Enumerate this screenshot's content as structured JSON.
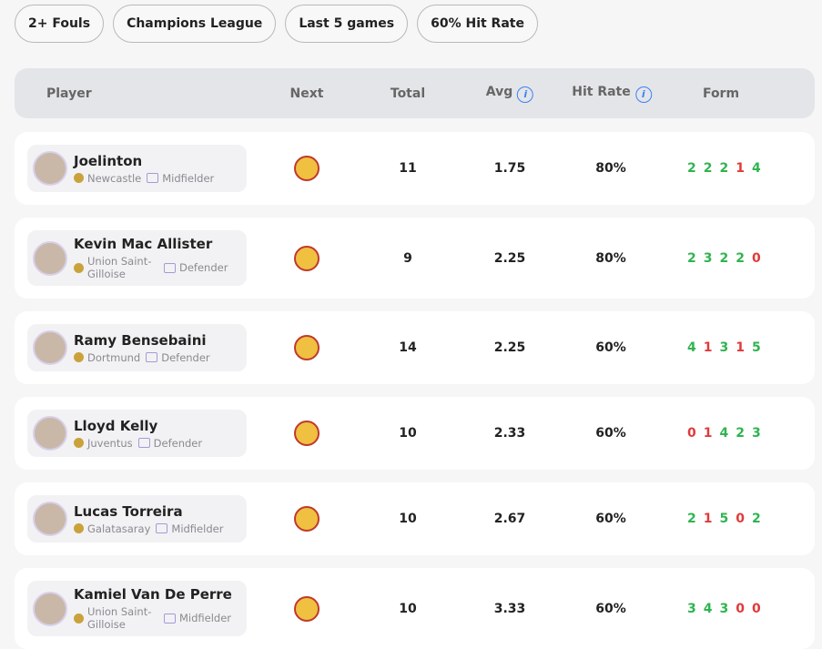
{
  "filters": [
    "2+ Fouls",
    "Champions League",
    "Last 5 games",
    "60% Hit Rate"
  ],
  "table": {
    "headers": {
      "player": "Player",
      "next": "Next",
      "total": "Total",
      "avg": "Avg",
      "hit_rate": "Hit Rate",
      "form": "Form"
    },
    "colors": {
      "hit": "#2fb44f",
      "miss": "#e03a3a"
    },
    "rows": [
      {
        "name": "Joelinton",
        "team": "Newcastle",
        "position": "Midfielder",
        "total": 11,
        "avg": 1.75,
        "hit_rate": "80%",
        "form": [
          2,
          2,
          2,
          1,
          4
        ],
        "form_hits": [
          true,
          true,
          true,
          false,
          true
        ]
      },
      {
        "name": "Kevin Mac Allister",
        "team": "Union Saint-Gilloise",
        "position": "Defender",
        "total": 9,
        "avg": 2.25,
        "hit_rate": "80%",
        "form": [
          2,
          3,
          2,
          2,
          0
        ],
        "form_hits": [
          true,
          true,
          true,
          true,
          false
        ]
      },
      {
        "name": "Ramy Bensebaini",
        "team": "Dortmund",
        "position": "Defender",
        "total": 14,
        "avg": 2.25,
        "hit_rate": "60%",
        "form": [
          4,
          1,
          3,
          1,
          5
        ],
        "form_hits": [
          true,
          false,
          true,
          false,
          true
        ]
      },
      {
        "name": "Lloyd Kelly",
        "team": "Juventus",
        "position": "Defender",
        "total": 10,
        "avg": 2.33,
        "hit_rate": "60%",
        "form": [
          0,
          1,
          4,
          2,
          3
        ],
        "form_hits": [
          false,
          false,
          true,
          true,
          true
        ]
      },
      {
        "name": "Lucas Torreira",
        "team": "Galatasaray",
        "position": "Midfielder",
        "total": 10,
        "avg": 2.67,
        "hit_rate": "60%",
        "form": [
          2,
          1,
          5,
          0,
          2
        ],
        "form_hits": [
          true,
          false,
          true,
          false,
          true
        ]
      },
      {
        "name": "Kamiel Van De Perre",
        "team": "Union Saint-Gilloise",
        "position": "Midfielder",
        "total": 10,
        "avg": 3.33,
        "hit_rate": "60%",
        "form": [
          3,
          4,
          3,
          0,
          0
        ],
        "form_hits": [
          true,
          true,
          true,
          false,
          false
        ]
      }
    ]
  }
}
